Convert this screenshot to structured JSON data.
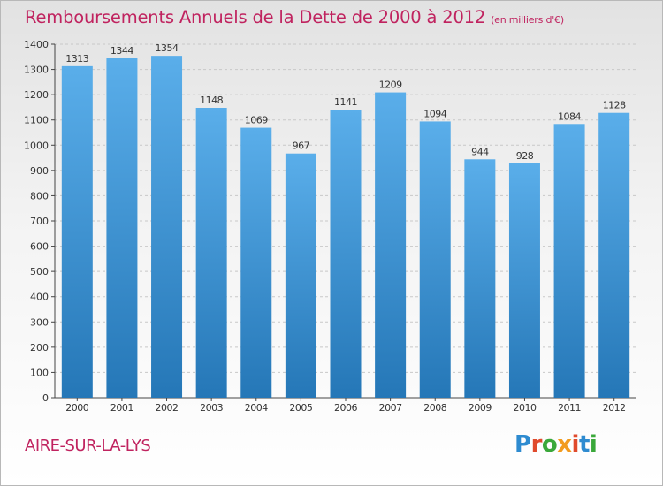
{
  "header": {
    "title": "Remboursements Annuels de la Dette de 2000 à 2012",
    "unit": "(en milliers d'€)"
  },
  "footer": {
    "place": "AIRE-SUR-LA-LYS",
    "logo_text": "Proxiti"
  },
  "colors": {
    "title": "#c0235f",
    "bar_top": "#5aaeea",
    "bar_bottom": "#2577b7",
    "grid": "#c8c8c8",
    "logo": [
      "#2e8bd0",
      "#e04a2c",
      "#3aa83a",
      "#f29b1e",
      "#e04a2c",
      "#2e8bd0",
      "#3aa83a"
    ]
  },
  "chart_data": {
    "type": "bar",
    "categories": [
      "2000",
      "2001",
      "2002",
      "2003",
      "2004",
      "2005",
      "2006",
      "2007",
      "2008",
      "2009",
      "2010",
      "2011",
      "2012"
    ],
    "values": [
      1313,
      1344,
      1354,
      1148,
      1069,
      967,
      1141,
      1209,
      1094,
      944,
      928,
      1084,
      1128
    ],
    "ylim": [
      0,
      1400
    ],
    "yticks": [
      0,
      100,
      200,
      300,
      400,
      500,
      600,
      700,
      800,
      900,
      1000,
      1100,
      1200,
      1300,
      1400
    ],
    "grid": true,
    "data_labels": true
  }
}
